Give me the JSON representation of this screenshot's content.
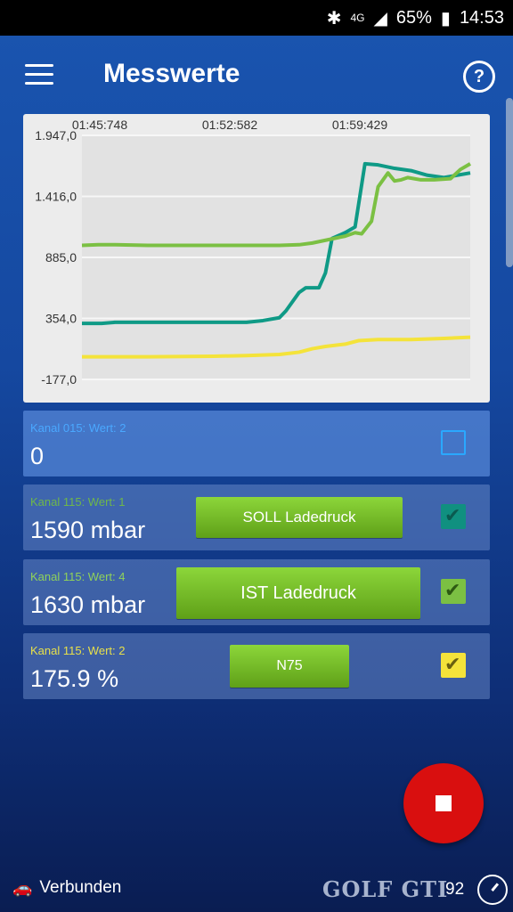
{
  "status_bar": {
    "network": "4G",
    "battery": "65%",
    "time": "14:53"
  },
  "app_bar": {
    "title": "Messwerte",
    "help_symbol": "?"
  },
  "chart_data": {
    "type": "line",
    "x_tick_labels": [
      "01:45:748",
      "01:52:582",
      "01:59:429"
    ],
    "y_tick_labels": [
      "1.947,0",
      "1.416,0",
      "885,0",
      "354,0",
      "-177,0"
    ],
    "ylim": [
      -177,
      1947
    ],
    "grid": true,
    "series": [
      {
        "color": "#0f9a86",
        "points": [
          [
            0,
            310
          ],
          [
            6,
            310
          ],
          [
            10,
            320
          ],
          [
            20,
            320
          ],
          [
            40,
            320
          ],
          [
            50,
            320
          ],
          [
            55,
            335
          ],
          [
            60,
            360
          ],
          [
            62,
            420
          ],
          [
            66,
            580
          ],
          [
            68,
            620
          ],
          [
            72,
            620
          ],
          [
            74,
            750
          ],
          [
            76,
            1050
          ],
          [
            80,
            1100
          ],
          [
            83,
            1150
          ],
          [
            86,
            1700
          ],
          [
            90,
            1690
          ],
          [
            95,
            1660
          ],
          [
            100,
            1640
          ],
          [
            105,
            1600
          ],
          [
            110,
            1580
          ],
          [
            114,
            1600
          ],
          [
            118,
            1620
          ]
        ]
      },
      {
        "color": "#7bc043",
        "points": [
          [
            0,
            990
          ],
          [
            5,
            995
          ],
          [
            10,
            995
          ],
          [
            20,
            990
          ],
          [
            40,
            990
          ],
          [
            60,
            990
          ],
          [
            66,
            995
          ],
          [
            70,
            1010
          ],
          [
            75,
            1040
          ],
          [
            80,
            1070
          ],
          [
            83,
            1100
          ],
          [
            85,
            1090
          ],
          [
            88,
            1200
          ],
          [
            90,
            1500
          ],
          [
            93,
            1620
          ],
          [
            95,
            1550
          ],
          [
            97,
            1560
          ],
          [
            99,
            1580
          ],
          [
            103,
            1560
          ],
          [
            107,
            1560
          ],
          [
            112,
            1570
          ],
          [
            115,
            1650
          ],
          [
            118,
            1700
          ]
        ]
      },
      {
        "color": "#f4e33a",
        "points": [
          [
            0,
            20
          ],
          [
            10,
            20
          ],
          [
            20,
            20
          ],
          [
            40,
            25
          ],
          [
            50,
            30
          ],
          [
            60,
            40
          ],
          [
            66,
            60
          ],
          [
            70,
            90
          ],
          [
            74,
            110
          ],
          [
            80,
            130
          ],
          [
            84,
            160
          ],
          [
            90,
            170
          ],
          [
            100,
            170
          ],
          [
            110,
            180
          ],
          [
            118,
            190
          ]
        ]
      }
    ]
  },
  "channels": [
    {
      "label": "Kanal 015: Wert: 2",
      "value": "0",
      "label_color": "#4aa8ff",
      "checked": false,
      "box_color": "#2aa8ff"
    },
    {
      "label": "Kanal 115: Wert: 1",
      "value": "1590 mbar",
      "label_color": "#6fb84a",
      "checked": true,
      "box_color": "#109080",
      "button": "SOLL Ladedruck"
    },
    {
      "label": "Kanal 115: Wert: 4",
      "value": "1630 mbar",
      "label_color": "#8fd25a",
      "checked": true,
      "box_color": "#7bc043",
      "button": "IST Ladedruck"
    },
    {
      "label": "Kanal 115: Wert: 2",
      "value": "175.9 %",
      "label_color": "#e8e04a",
      "checked": true,
      "box_color": "#f4e33a",
      "button": "N75"
    }
  ],
  "footer": {
    "status": "Verbunden",
    "counter": "92",
    "watermark": "GOLF GTI"
  }
}
